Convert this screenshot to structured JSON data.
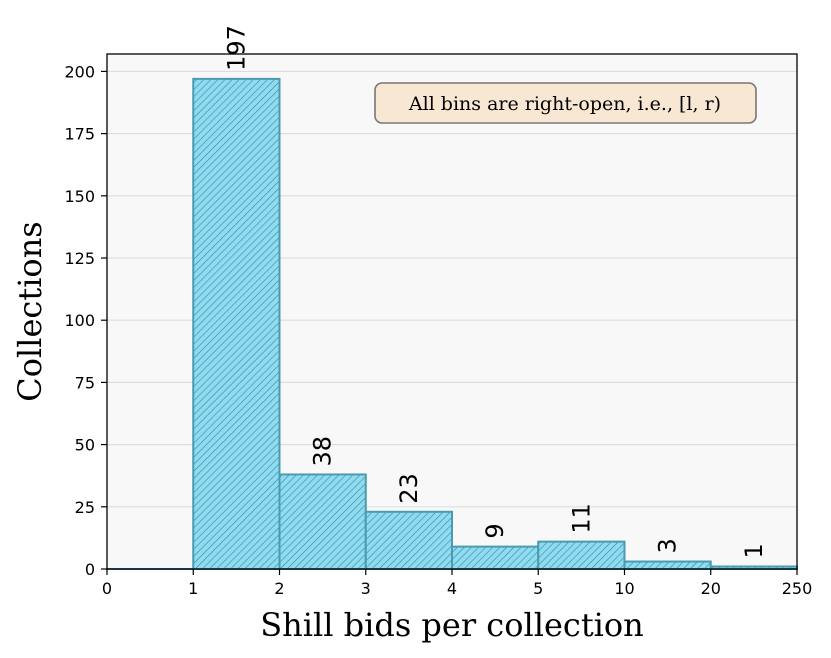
{
  "chart_data": {
    "type": "bar",
    "title": "",
    "xlabel": "Shill bids per collection",
    "ylabel": "Collections",
    "bin_edges": [
      "0",
      "1",
      "2",
      "3",
      "4",
      "5",
      "10",
      "20",
      "250"
    ],
    "categories": [
      "[0, 1)",
      "[1, 2)",
      "[2, 3)",
      "[3, 4)",
      "[4, 5)",
      "[5, 10)",
      "[10, 20)",
      "[20, 250)"
    ],
    "values": [
      0,
      197,
      38,
      23,
      9,
      11,
      3,
      1
    ],
    "data_labels": [
      "",
      "197",
      "38",
      "23",
      "9",
      "11",
      "3",
      "1"
    ],
    "ylim": [
      0,
      207
    ],
    "yticks": [
      "0",
      "25",
      "50",
      "75",
      "100",
      "125",
      "150",
      "175",
      "200"
    ],
    "grid": "horizontal",
    "annotation": "All bins are right-open, i.e., [l, r)",
    "colors": {
      "bar_fill": "#8fdcf1",
      "bar_edge": "#4a9bb0",
      "hatch": "#3b8ea6",
      "plot_background": "#f8f8f8",
      "grid": "#dddddd",
      "note_fill": "#f8e7d2",
      "note_edge": "#777777"
    }
  }
}
